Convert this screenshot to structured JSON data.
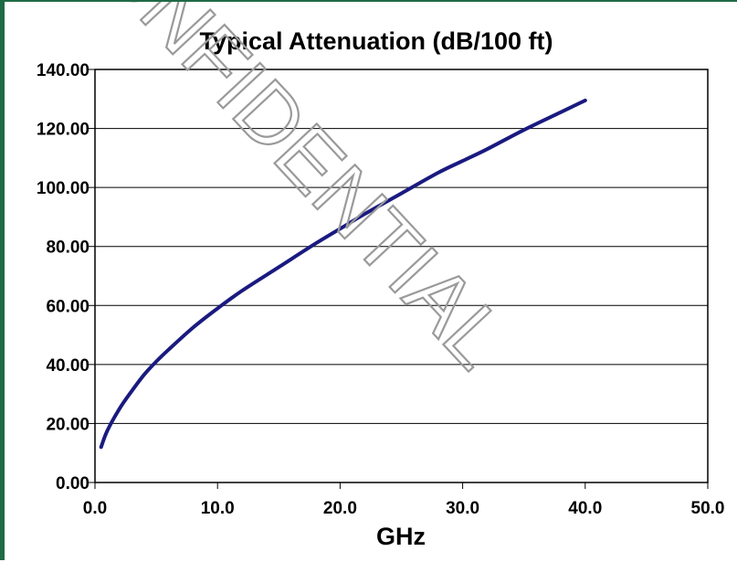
{
  "watermark_text": "CONFIDENTIAL",
  "colors": {
    "line": "#1a1a80",
    "frame": "#1e6b45",
    "grid": "#000000"
  },
  "chart_data": {
    "type": "line",
    "title": "Typical Attenuation (dB/100 ft)",
    "xlabel": "GHz",
    "ylabel": "",
    "xlim": [
      0,
      50
    ],
    "ylim": [
      0,
      140
    ],
    "xticks": [
      0,
      10,
      20,
      30,
      40,
      50
    ],
    "xtick_labels": [
      "0.0",
      "10.0",
      "20.0",
      "30.0",
      "40.0",
      "50.0"
    ],
    "yticks": [
      0,
      20,
      40,
      60,
      80,
      100,
      120,
      140
    ],
    "ytick_labels": [
      "0.00",
      "20.00",
      "40.00",
      "60.00",
      "80.00",
      "100.00",
      "120.00",
      "140.00"
    ],
    "grid": {
      "horizontal": true,
      "vertical": false
    },
    "legend": "none",
    "series": [
      {
        "x": [
          0.5,
          1,
          2,
          3,
          4,
          5,
          6,
          8,
          10,
          12,
          15,
          18,
          20,
          22,
          25,
          28,
          30,
          32,
          35,
          38,
          40
        ],
        "y": [
          12,
          17.5,
          25,
          31,
          36.5,
          41,
          45,
          52.5,
          59,
          65,
          73,
          81,
          86,
          91,
          98,
          105,
          109,
          113,
          119.5,
          125.5,
          129.5
        ]
      }
    ]
  }
}
